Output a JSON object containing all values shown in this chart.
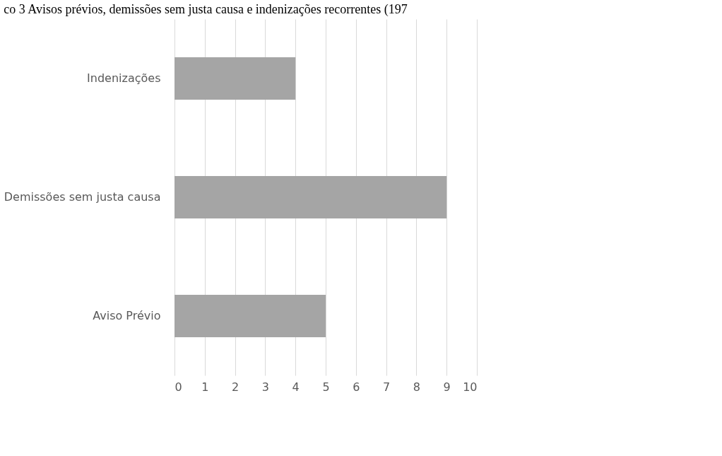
{
  "chart_data": {
    "type": "bar",
    "orientation": "horizontal",
    "title": "co 3 Avisos prévios, demissões sem justa causa e indenizações recorrentes (197",
    "categories": [
      "Indenizações",
      "Demissões sem justa causa",
      "Aviso Prévio"
    ],
    "values": [
      4,
      9,
      5
    ],
    "color": "#a5a5a5",
    "xlim": [
      0,
      10
    ],
    "xticks": [
      0,
      1,
      2,
      3,
      4,
      5,
      6,
      7,
      8,
      9,
      10
    ],
    "grid": "x"
  }
}
